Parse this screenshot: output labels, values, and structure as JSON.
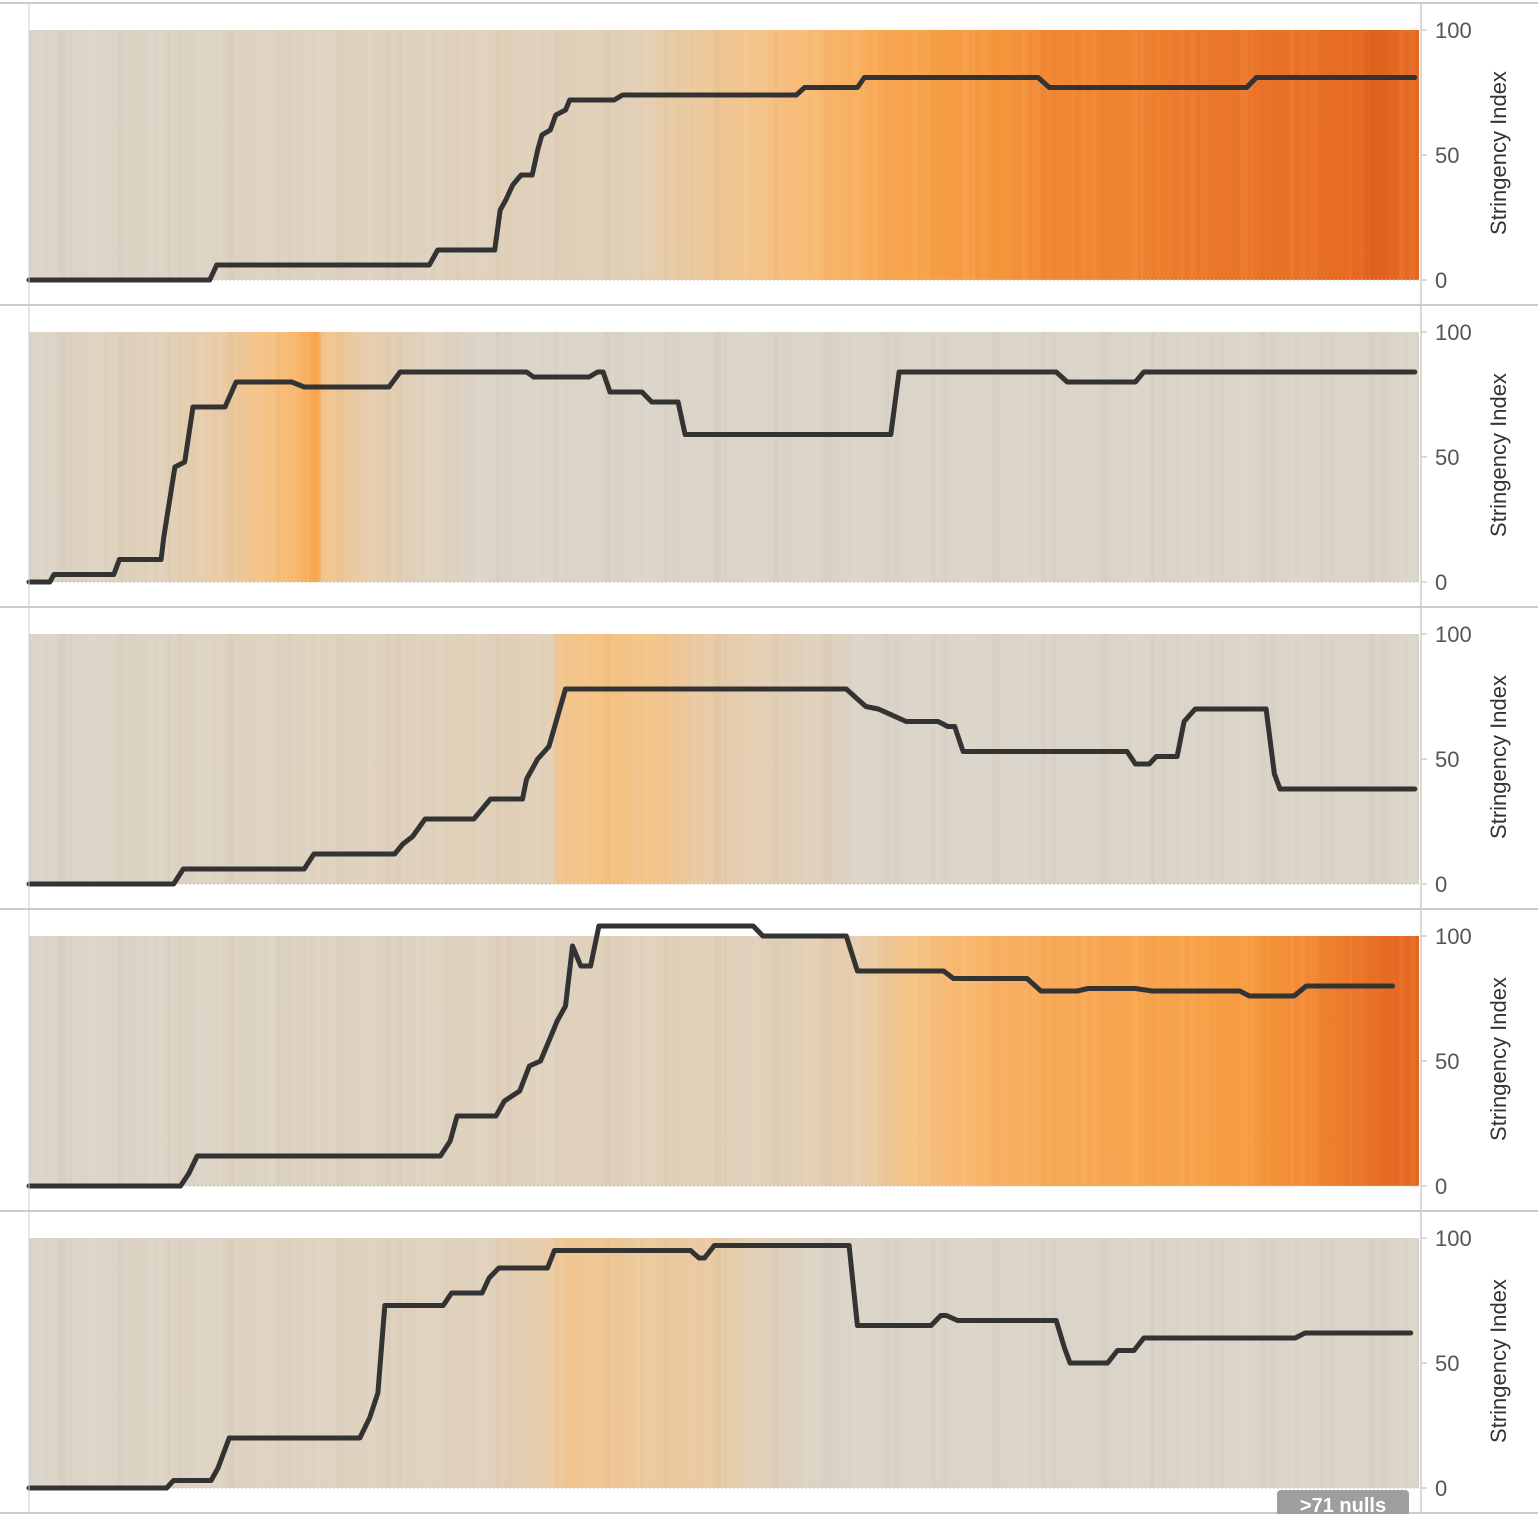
{
  "colors": {
    "base": "#dbd4c8",
    "line": "#333333",
    "heat_scale": [
      "#dbd4c8",
      "#f9c07a",
      "#f79a3d",
      "#e5651f",
      "#b84a1e"
    ],
    "divider": "#cccccc",
    "badge": "#9e9e9e"
  },
  "chart_data": [
    {
      "type": "line",
      "background": "heatmap",
      "ylabel": "Stringency Index",
      "ylim": [
        0,
        100
      ],
      "yticks": [
        0,
        50,
        100
      ],
      "x_index_range": [
        0,
        100
      ],
      "line": [
        [
          0,
          0
        ],
        [
          13,
          0
        ],
        [
          13.5,
          6
        ],
        [
          28.8,
          6
        ],
        [
          29.4,
          12
        ],
        [
          33.5,
          12
        ],
        [
          33.9,
          28
        ],
        [
          34.3,
          32
        ],
        [
          34.8,
          38
        ],
        [
          35.4,
          42
        ],
        [
          36.2,
          42
        ],
        [
          36.6,
          52
        ],
        [
          36.9,
          58
        ],
        [
          37.5,
          60
        ],
        [
          37.9,
          66
        ],
        [
          38.6,
          68
        ],
        [
          38.9,
          72
        ],
        [
          42.1,
          72
        ],
        [
          42.7,
          74
        ],
        [
          55.2,
          74
        ],
        [
          55.8,
          77
        ],
        [
          59.6,
          77
        ],
        [
          60.1,
          81
        ],
        [
          72.6,
          81
        ],
        [
          73.4,
          77
        ],
        [
          87.6,
          77
        ],
        [
          88.3,
          81
        ],
        [
          99.7,
          81
        ]
      ],
      "heat": [
        [
          0,
          0.0
        ],
        [
          43,
          0.05
        ],
        [
          47,
          0.12
        ],
        [
          52,
          0.2
        ],
        [
          57,
          0.3
        ],
        [
          61,
          0.4
        ],
        [
          66,
          0.48
        ],
        [
          70,
          0.52
        ],
        [
          73,
          0.58
        ],
        [
          77,
          0.6
        ],
        [
          81,
          0.62
        ],
        [
          84,
          0.66
        ],
        [
          88,
          0.68
        ],
        [
          92,
          0.7
        ],
        [
          95,
          0.72
        ],
        [
          97,
          0.78
        ],
        [
          99,
          0.72
        ],
        [
          100,
          0.75
        ]
      ]
    },
    {
      "type": "line",
      "background": "heatmap",
      "ylabel": "Stringency Index",
      "ylim": [
        0,
        100
      ],
      "yticks": [
        0,
        50,
        100
      ],
      "x_index_range": [
        0,
        100
      ],
      "line": [
        [
          0,
          0
        ],
        [
          1.5,
          0
        ],
        [
          1.8,
          3
        ],
        [
          6.1,
          3
        ],
        [
          6.5,
          9
        ],
        [
          9.5,
          9
        ],
        [
          9.7,
          18
        ],
        [
          10.5,
          46
        ],
        [
          11.2,
          48
        ],
        [
          11.8,
          70
        ],
        [
          14.1,
          70
        ],
        [
          14.9,
          80
        ],
        [
          18.9,
          80
        ],
        [
          19.8,
          78
        ],
        [
          25.9,
          78
        ],
        [
          26.7,
          84
        ],
        [
          35.8,
          84
        ],
        [
          36.3,
          82
        ],
        [
          40.3,
          82
        ],
        [
          40.9,
          84
        ],
        [
          41.3,
          84
        ],
        [
          41.8,
          76
        ],
        [
          44.1,
          76
        ],
        [
          44.8,
          72
        ],
        [
          46.7,
          72
        ],
        [
          47.2,
          59
        ],
        [
          62.0,
          59
        ],
        [
          62.6,
          84
        ],
        [
          73.9,
          84
        ],
        [
          74.7,
          80
        ],
        [
          79.6,
          80
        ],
        [
          80.2,
          84
        ],
        [
          99.7,
          84
        ]
      ],
      "heat": [
        [
          0,
          0.0
        ],
        [
          10,
          0.05
        ],
        [
          14,
          0.12
        ],
        [
          17,
          0.22
        ],
        [
          19,
          0.28
        ],
        [
          20.8,
          0.45
        ],
        [
          21.1,
          0.2
        ],
        [
          24,
          0.1
        ],
        [
          28,
          0.04
        ],
        [
          33,
          0.0
        ],
        [
          100,
          0.0
        ]
      ]
    },
    {
      "type": "line",
      "background": "heatmap",
      "ylabel": "Stringency Index",
      "ylim": [
        0,
        100
      ],
      "yticks": [
        0,
        50,
        100
      ],
      "x_index_range": [
        0,
        100
      ],
      "line": [
        [
          0,
          0
        ],
        [
          10.4,
          0
        ],
        [
          11.1,
          6
        ],
        [
          19.8,
          6
        ],
        [
          20.5,
          12
        ],
        [
          26.3,
          12
        ],
        [
          26.9,
          16
        ],
        [
          27.6,
          19
        ],
        [
          28.5,
          26
        ],
        [
          32.0,
          26
        ],
        [
          33.2,
          34
        ],
        [
          35.5,
          34
        ],
        [
          35.8,
          42
        ],
        [
          36.6,
          50
        ],
        [
          37.4,
          55
        ],
        [
          38.6,
          78
        ],
        [
          58.8,
          78
        ],
        [
          59.6,
          74
        ],
        [
          60.2,
          71
        ],
        [
          61.1,
          70
        ],
        [
          61.5,
          69
        ],
        [
          63.1,
          65
        ],
        [
          65.4,
          65
        ],
        [
          66.1,
          63
        ],
        [
          66.6,
          63
        ],
        [
          67.2,
          53
        ],
        [
          79.0,
          53
        ],
        [
          79.6,
          48
        ],
        [
          80.6,
          48
        ],
        [
          81.1,
          51
        ],
        [
          82.6,
          51
        ],
        [
          83.1,
          65
        ],
        [
          83.9,
          70
        ],
        [
          89.0,
          70
        ],
        [
          89.6,
          44
        ],
        [
          90.0,
          38
        ],
        [
          99.7,
          38
        ]
      ],
      "heat": [
        [
          0,
          0.0
        ],
        [
          37.5,
          0.05
        ],
        [
          38.2,
          0.18
        ],
        [
          41,
          0.22
        ],
        [
          45,
          0.2
        ],
        [
          48,
          0.12
        ],
        [
          53,
          0.06
        ],
        [
          58,
          0.03
        ],
        [
          60,
          0.0
        ],
        [
          100,
          0.0
        ]
      ]
    },
    {
      "type": "line",
      "background": "heatmap",
      "ylabel": "Stringency Index",
      "ylim": [
        0,
        100
      ],
      "yticks": [
        0,
        50,
        100
      ],
      "x_index_range": [
        0,
        100
      ],
      "line": [
        [
          0,
          0
        ],
        [
          10.9,
          0
        ],
        [
          11.5,
          5
        ],
        [
          12.1,
          12
        ],
        [
          29.6,
          12
        ],
        [
          30.3,
          18
        ],
        [
          30.8,
          28
        ],
        [
          33.6,
          28
        ],
        [
          34.2,
          34
        ],
        [
          35.3,
          38
        ],
        [
          36.0,
          48
        ],
        [
          36.8,
          50
        ],
        [
          37.4,
          58
        ],
        [
          38.0,
          66
        ],
        [
          38.6,
          72
        ],
        [
          39.1,
          96
        ],
        [
          39.7,
          88
        ],
        [
          40.4,
          88
        ],
        [
          41.0,
          104
        ],
        [
          52.1,
          104
        ],
        [
          52.8,
          100
        ],
        [
          58.8,
          100
        ],
        [
          59.6,
          86
        ],
        [
          65.8,
          86
        ],
        [
          66.5,
          83
        ],
        [
          71.8,
          83
        ],
        [
          72.8,
          78
        ],
        [
          75.4,
          78
        ],
        [
          76.2,
          79
        ],
        [
          79.6,
          79
        ],
        [
          80.8,
          78
        ],
        [
          87.1,
          78
        ],
        [
          87.8,
          76
        ],
        [
          91.0,
          76
        ],
        [
          91.9,
          80
        ],
        [
          98.1,
          80
        ]
      ],
      "heat": [
        [
          0,
          0.0
        ],
        [
          55,
          0.05
        ],
        [
          60,
          0.1
        ],
        [
          63,
          0.2
        ],
        [
          67,
          0.3
        ],
        [
          72,
          0.38
        ],
        [
          78,
          0.42
        ],
        [
          84,
          0.45
        ],
        [
          88,
          0.5
        ],
        [
          92,
          0.58
        ],
        [
          95,
          0.66
        ],
        [
          98,
          0.72
        ],
        [
          100,
          0.75
        ]
      ]
    },
    {
      "type": "line",
      "background": "heatmap",
      "ylabel": "Stringency Index",
      "ylim": [
        0,
        100
      ],
      "yticks": [
        0,
        50,
        100
      ],
      "x_index_range": [
        0,
        100
      ],
      "line": [
        [
          0,
          0
        ],
        [
          9.9,
          0
        ],
        [
          10.4,
          3
        ],
        [
          13.1,
          3
        ],
        [
          13.6,
          8
        ],
        [
          14.4,
          20
        ],
        [
          23.8,
          20
        ],
        [
          24.5,
          28
        ],
        [
          25.1,
          38
        ],
        [
          25.6,
          73
        ],
        [
          29.8,
          73
        ],
        [
          30.4,
          78
        ],
        [
          32.6,
          78
        ],
        [
          33.1,
          84
        ],
        [
          33.8,
          88
        ],
        [
          37.3,
          88
        ],
        [
          37.8,
          95
        ],
        [
          47.6,
          95
        ],
        [
          48.2,
          92
        ],
        [
          48.6,
          92
        ],
        [
          49.3,
          97
        ],
        [
          59.0,
          97
        ],
        [
          59.6,
          65
        ],
        [
          64.9,
          65
        ],
        [
          65.6,
          69
        ],
        [
          66.0,
          69
        ],
        [
          66.8,
          67
        ],
        [
          73.9,
          67
        ],
        [
          74.5,
          56
        ],
        [
          74.9,
          50
        ],
        [
          77.6,
          50
        ],
        [
          78.3,
          55
        ],
        [
          79.5,
          55
        ],
        [
          80.2,
          60
        ],
        [
          91.1,
          60
        ],
        [
          91.8,
          62
        ],
        [
          99.4,
          62
        ]
      ],
      "heat": [
        [
          0,
          0.0
        ],
        [
          33,
          0.04
        ],
        [
          37,
          0.1
        ],
        [
          39,
          0.18
        ],
        [
          42,
          0.16
        ],
        [
          45,
          0.14
        ],
        [
          49,
          0.12
        ],
        [
          52,
          0.06
        ],
        [
          55,
          0.02
        ],
        [
          58,
          0.0
        ],
        [
          100,
          0.0
        ]
      ]
    }
  ],
  "null_badge": {
    "label": ">71 nulls"
  }
}
